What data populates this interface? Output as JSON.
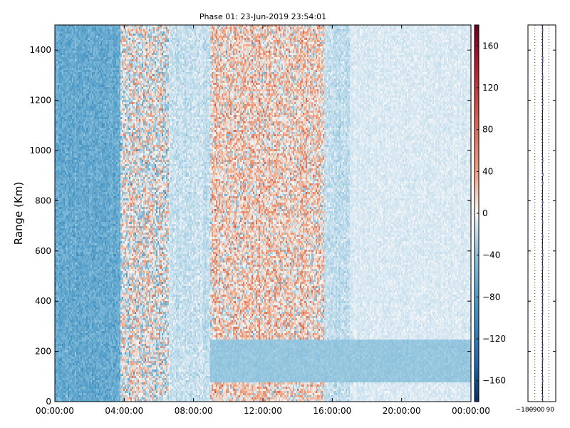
{
  "chart_data": {
    "type": "heatmap",
    "title": "Phase 01: 23-Jun-2019 23:54:01",
    "ylabel": "Range (Km)",
    "xlabel": "",
    "x_ticks": [
      "00:00:00",
      "04:00:00",
      "08:00:00",
      "12:00:00",
      "16:00:00",
      "20:00:00",
      "00:00:00"
    ],
    "x_range_hours": [
      0,
      24
    ],
    "y_ticks": [
      0,
      200,
      400,
      600,
      800,
      1000,
      1200,
      1400
    ],
    "ylim": [
      0,
      1500
    ],
    "colormap": "RdBu_r",
    "color_range": [
      -180,
      180
    ],
    "colorbar_ticks": [
      160,
      120,
      80,
      40,
      0,
      -40,
      -80,
      -120,
      -160
    ],
    "regions": [
      {
        "start_hour": 0.0,
        "end_hour": 3.8,
        "mean": -65,
        "spread": 35
      },
      {
        "start_hour": 3.8,
        "end_hour": 6.6,
        "mean": -5,
        "spread": 95
      },
      {
        "start_hour": 6.6,
        "end_hour": 9.0,
        "mean": -15,
        "spread": 22
      },
      {
        "start_hour": 9.0,
        "end_hour": 15.5,
        "mean": 15,
        "spread": 85
      },
      {
        "start_hour": 15.5,
        "end_hour": 17.0,
        "mean": -18,
        "spread": 22
      },
      {
        "start_hour": 17.0,
        "end_hour": 24.0,
        "mean": -8,
        "spread": 12
      }
    ],
    "low_range_band": {
      "min_km": 80,
      "max_km": 250,
      "start_hour": 9.0,
      "end_hour": 24.0,
      "value": -35
    },
    "side_panel": {
      "x_ticks": [
        "−180",
        "−90",
        "0",
        "90"
      ],
      "xlim": [
        -180,
        180
      ],
      "profile_mean": 10,
      "profile_spread": 6,
      "line_color": "#0000cc"
    }
  }
}
